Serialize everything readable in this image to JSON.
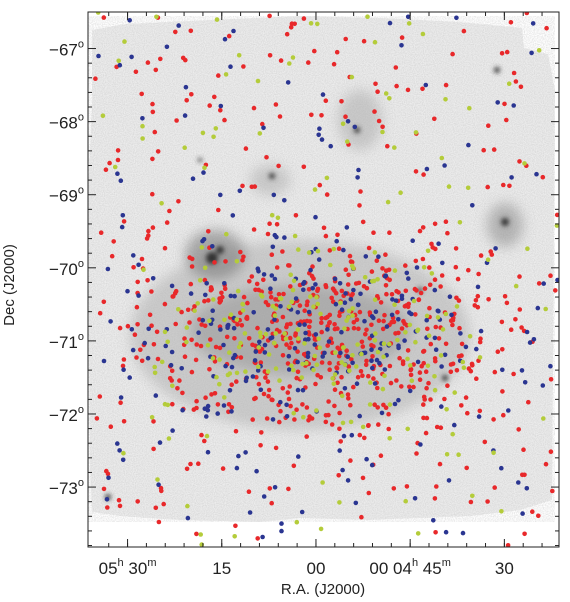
{
  "chart_data": {
    "type": "scatter",
    "title": "",
    "xlabel": "R.A. (J2000)",
    "ylabel": "Dec (J2000)",
    "x_unit": "hours of right ascension (decimal)",
    "y_unit": "degrees of declination",
    "xlim": [
      5.605,
      4.355
    ],
    "ylim": [
      -73.82,
      -66.5
    ],
    "x_ticks": [
      {
        "value": 5.5,
        "parts": [
          {
            "t": "05",
            "sup": false
          },
          {
            "t": "h",
            "sup": true
          },
          {
            "t": " 30",
            "sup": false
          },
          {
            "t": "m",
            "sup": true
          }
        ]
      },
      {
        "value": 5.25,
        "parts": [
          {
            "t": "15",
            "sup": false
          }
        ]
      },
      {
        "value": 5.0,
        "parts": [
          {
            "t": "00",
            "sup": false
          }
        ]
      },
      {
        "value": 4.75,
        "parts": [
          {
            "t": "00 04",
            "sup": false
          },
          {
            "t": "h",
            "sup": true
          },
          {
            "t": " 45",
            "sup": false
          },
          {
            "t": "m",
            "sup": true
          }
        ]
      },
      {
        "value": 4.5,
        "parts": [
          {
            "t": "30",
            "sup": false
          }
        ]
      }
    ],
    "y_ticks": [
      {
        "value": -67,
        "label": "−67",
        "sup": "o"
      },
      {
        "value": -68,
        "label": "−68",
        "sup": "o"
      },
      {
        "value": -69,
        "label": "−69",
        "sup": "o"
      },
      {
        "value": -70,
        "label": "−70",
        "sup": "o"
      },
      {
        "value": -71,
        "label": "−71",
        "sup": "o"
      },
      {
        "value": -72,
        "label": "−72",
        "sup": "o"
      },
      {
        "value": -73,
        "label": "−73",
        "sup": "o"
      }
    ],
    "background": "grayscale sky image",
    "grid": false,
    "legend": "none",
    "series": [
      {
        "color": "#e8282a",
        "count": 760,
        "center": [
          5.0,
          -70.95
        ],
        "spread": [
          0.24,
          1.25
        ]
      },
      {
        "color": "#2a3591",
        "count": 330,
        "center": [
          4.99,
          -70.85
        ],
        "spread": [
          0.24,
          1.15
        ]
      },
      {
        "color": "#b4cc3a",
        "count": 250,
        "center": [
          4.99,
          -70.95
        ],
        "spread": [
          0.22,
          1.1
        ]
      }
    ]
  }
}
